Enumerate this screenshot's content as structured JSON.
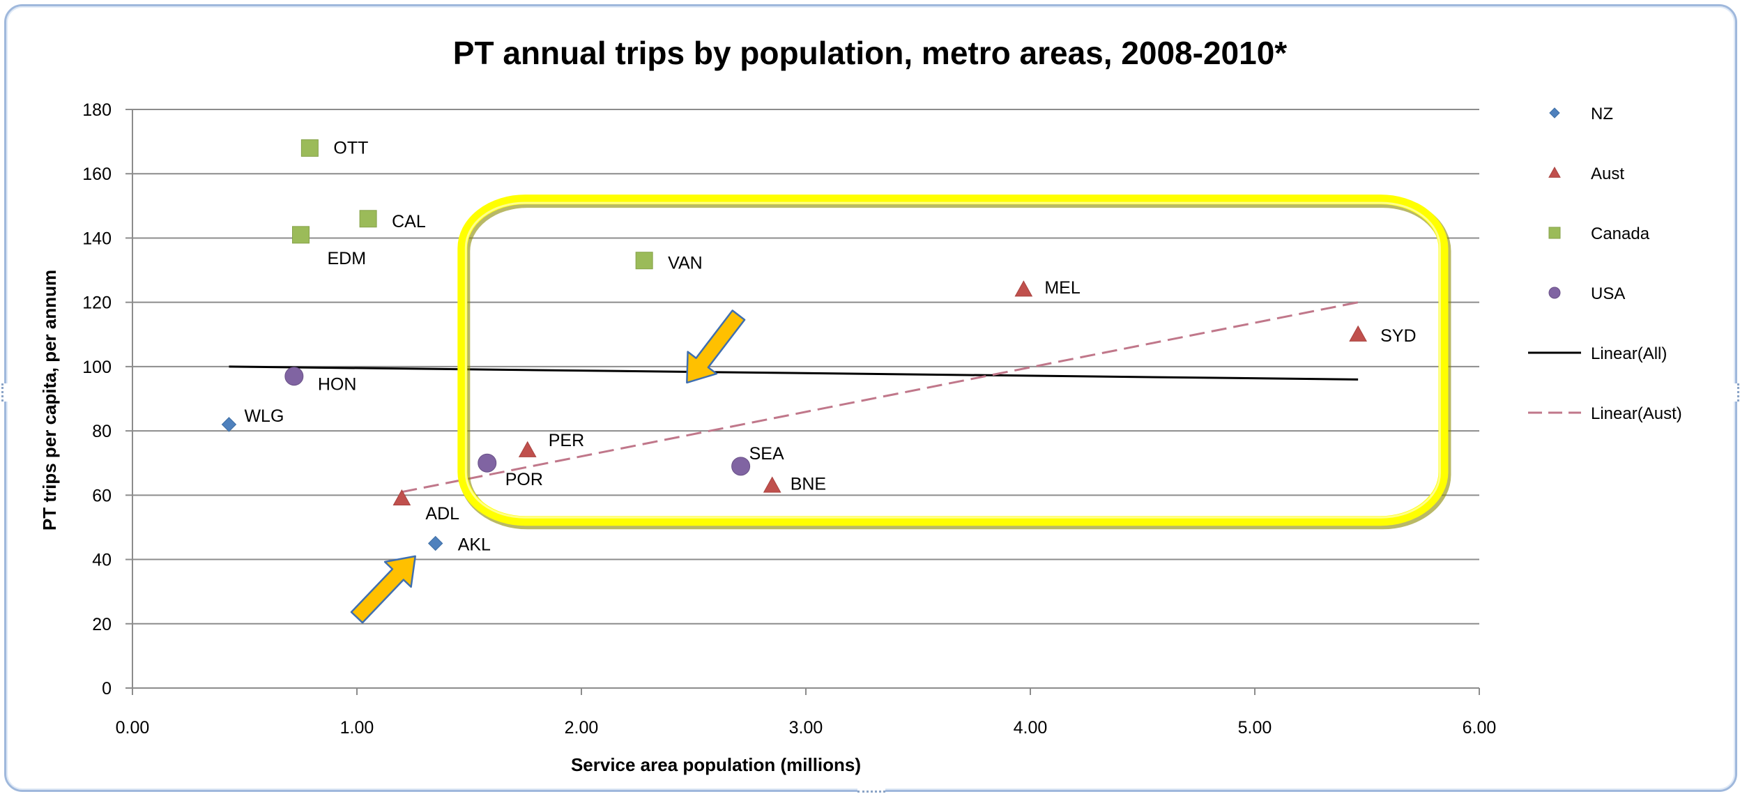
{
  "chart_data": {
    "type": "scatter",
    "title": "PT annual trips by population, metro areas, 2008-2010*",
    "xlabel": "Service area population (millions)",
    "ylabel": "PT trips per capita, per annum",
    "xlim": [
      0,
      6
    ],
    "ylim": [
      0,
      180
    ],
    "x_ticks": [
      "0.00",
      "1.00",
      "2.00",
      "3.00",
      "4.00",
      "5.00",
      "6.00"
    ],
    "y_ticks": [
      "0",
      "20",
      "40",
      "60",
      "80",
      "100",
      "120",
      "140",
      "160",
      "180"
    ],
    "grid": true,
    "legend_position": "right",
    "series": [
      {
        "name": "NZ",
        "marker": "diamond",
        "color": "#4f81bd",
        "points": [
          {
            "label": "WLG",
            "x": 0.43,
            "y": 82
          },
          {
            "label": "AKL",
            "x": 1.35,
            "y": 45
          }
        ]
      },
      {
        "name": "Aust",
        "marker": "triangle",
        "color": "#c0504d",
        "points": [
          {
            "label": "ADL",
            "x": 1.2,
            "y": 59
          },
          {
            "label": "PER",
            "x": 1.76,
            "y": 74
          },
          {
            "label": "BNE",
            "x": 2.85,
            "y": 63
          },
          {
            "label": "MEL",
            "x": 3.97,
            "y": 124
          },
          {
            "label": "SYD",
            "x": 5.46,
            "y": 110
          }
        ]
      },
      {
        "name": "Canada",
        "marker": "square",
        "color": "#9bbb59",
        "points": [
          {
            "label": "OTT",
            "x": 0.79,
            "y": 168
          },
          {
            "label": "CAL",
            "x": 1.05,
            "y": 146
          },
          {
            "label": "EDM",
            "x": 0.75,
            "y": 141
          },
          {
            "label": "VAN",
            "x": 2.28,
            "y": 133
          }
        ]
      },
      {
        "name": "USA",
        "marker": "circle",
        "color": "#8064a2",
        "points": [
          {
            "label": "HON",
            "x": 0.72,
            "y": 97
          },
          {
            "label": "POR",
            "x": 1.58,
            "y": 70
          },
          {
            "label": "SEA",
            "x": 2.71,
            "y": 69
          }
        ]
      }
    ],
    "trendlines": [
      {
        "name": "Linear(All)",
        "style": "solid",
        "color": "#000000",
        "x": [
          0.43,
          5.46
        ],
        "y": [
          100,
          96
        ]
      },
      {
        "name": "Linear(Aust)",
        "style": "dashed",
        "color": "#c0504d",
        "x": [
          1.2,
          5.46
        ],
        "y": [
          61,
          120
        ]
      }
    ],
    "annotations": [
      {
        "type": "rounded-rectangle",
        "color": "#ffff00",
        "from": [
          1.47,
          152
        ],
        "to": [
          5.84,
          52
        ]
      },
      {
        "type": "arrow",
        "color": "#ffc000",
        "from": [
          2.7,
          116
        ],
        "to": [
          2.47,
          95
        ]
      },
      {
        "type": "arrow",
        "color": "#ffc000",
        "from": [
          1.0,
          22
        ],
        "to": [
          1.26,
          41
        ]
      }
    ]
  }
}
